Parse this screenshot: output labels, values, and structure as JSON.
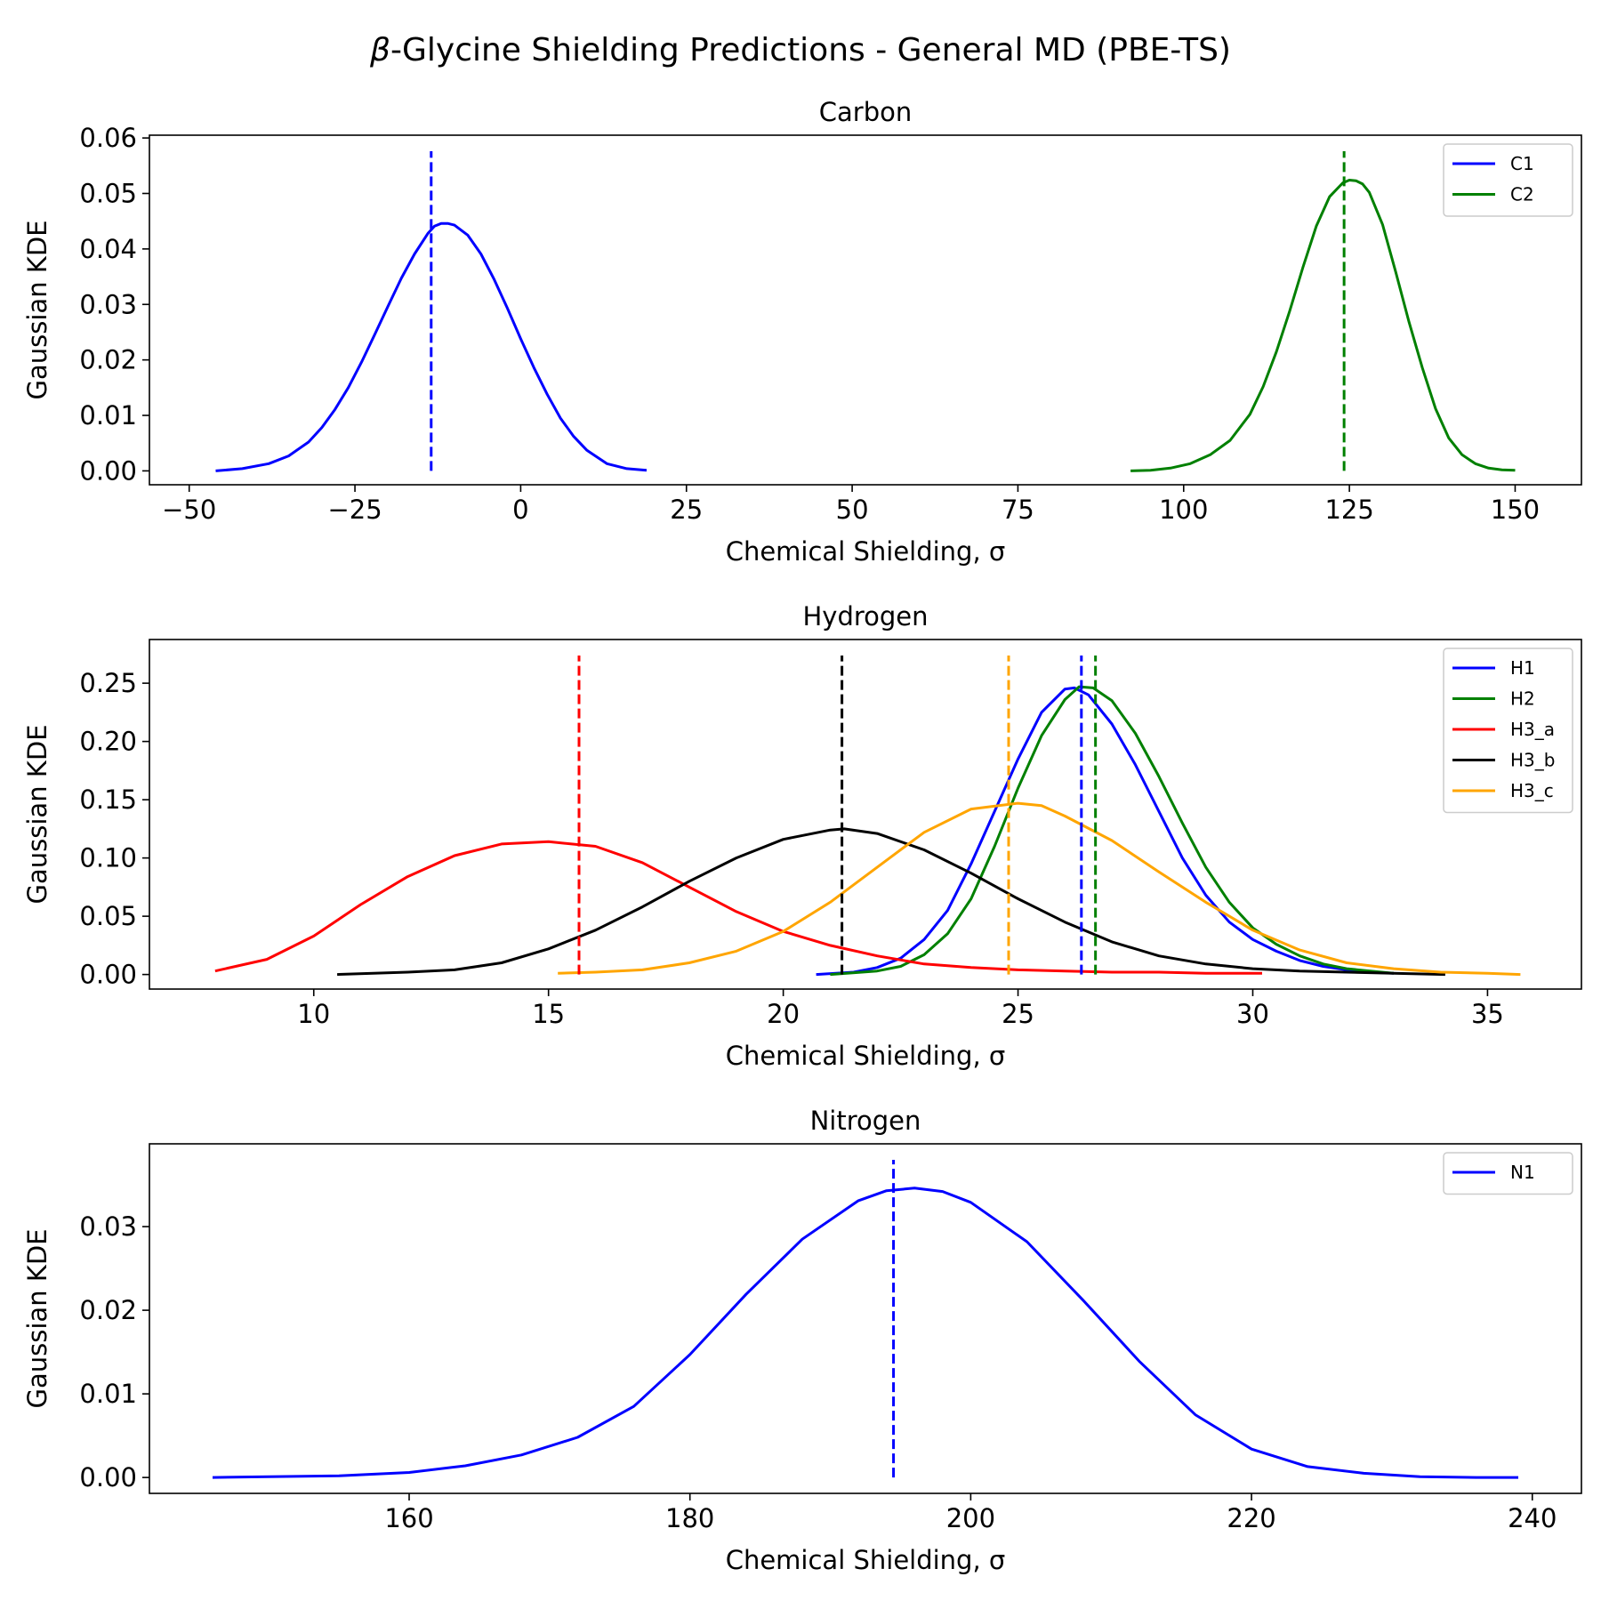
{
  "figure": {
    "title_prefix": "β",
    "title_rest": "-Glycine Shielding Predictions - General MD (PBE-TS)"
  },
  "chart_data": [
    {
      "type": "line",
      "title": "Carbon",
      "xlabel": "Chemical Shielding, σ",
      "ylabel": "Gaussian KDE",
      "xlim": [
        -56,
        160
      ],
      "ylim": [
        -0.0025,
        0.0605
      ],
      "xticks": [
        -50,
        -25,
        0,
        25,
        50,
        75,
        100,
        125,
        150
      ],
      "xtick_labels": [
        "−50",
        "−25",
        "0",
        "25",
        "50",
        "75",
        "100",
        "125",
        "150"
      ],
      "yticks": [
        0,
        0.01,
        0.02,
        0.03,
        0.04,
        0.05,
        0.06
      ],
      "ytick_labels": [
        "0.00",
        "0.01",
        "0.02",
        "0.03",
        "0.04",
        "0.05",
        "0.06"
      ],
      "legend": "top-right",
      "series": [
        {
          "name": "C1",
          "color": "#0000ff",
          "x": [
            -46,
            -42,
            -38,
            -35,
            -32,
            -30,
            -28,
            -26,
            -24,
            -22,
            -20,
            -18,
            -16,
            -14,
            -13,
            -12,
            -11,
            -10,
            -8,
            -6,
            -4,
            -2,
            0,
            2,
            4,
            6,
            8,
            10,
            13,
            16,
            19
          ],
          "y": [
            0.0,
            0.0004,
            0.0013,
            0.0027,
            0.0052,
            0.0078,
            0.0111,
            0.015,
            0.0196,
            0.0246,
            0.0297,
            0.0347,
            0.0391,
            0.0428,
            0.0441,
            0.0446,
            0.0446,
            0.0443,
            0.0425,
            0.0391,
            0.0345,
            0.0293,
            0.0238,
            0.0186,
            0.0138,
            0.0095,
            0.0062,
            0.0037,
            0.0013,
            0.0004,
            0.0001
          ],
          "mean": -13.5
        },
        {
          "name": "C2",
          "color": "#008000",
          "x": [
            92,
            95,
            98,
            101,
            104,
            107,
            110,
            112,
            114,
            116,
            118,
            120,
            122,
            124,
            125,
            126,
            127,
            128,
            130,
            132,
            134,
            136,
            138,
            140,
            142,
            144,
            146,
            148,
            150
          ],
          "y": [
            0.0,
            0.0001,
            0.0005,
            0.0013,
            0.0029,
            0.0055,
            0.0102,
            0.0152,
            0.0215,
            0.0288,
            0.0367,
            0.0441,
            0.0494,
            0.0519,
            0.0524,
            0.0523,
            0.0517,
            0.0502,
            0.0444,
            0.0358,
            0.0268,
            0.0186,
            0.0112,
            0.0059,
            0.0029,
            0.0013,
            0.0005,
            0.0002,
            0.0001
          ],
          "mean": 124.2
        }
      ]
    },
    {
      "type": "line",
      "title": "Hydrogen",
      "xlabel": "Chemical Shielding, σ",
      "ylabel": "Gaussian KDE",
      "xlim": [
        6.5,
        37
      ],
      "ylim": [
        -0.0125,
        0.2875
      ],
      "xticks": [
        10,
        15,
        20,
        25,
        30,
        35
      ],
      "xtick_labels": [
        "10",
        "15",
        "20",
        "25",
        "30",
        "35"
      ],
      "yticks": [
        0,
        0.05,
        0.1,
        0.15,
        0.2,
        0.25
      ],
      "ytick_labels": [
        "0.00",
        "0.05",
        "0.10",
        "0.15",
        "0.20",
        "0.25"
      ],
      "legend": "top-right",
      "series": [
        {
          "name": "H1",
          "color": "#0000ff",
          "x": [
            20.7,
            21.5,
            22.0,
            22.5,
            23.0,
            23.5,
            24.0,
            24.5,
            25.0,
            25.5,
            26.0,
            26.2,
            26.5,
            27.0,
            27.5,
            28.0,
            28.5,
            29.0,
            29.5,
            30.0,
            30.5,
            31.0,
            31.5,
            32.0,
            32.5,
            33.0
          ],
          "y": [
            0.0,
            0.002,
            0.006,
            0.014,
            0.03,
            0.055,
            0.095,
            0.14,
            0.185,
            0.225,
            0.245,
            0.246,
            0.24,
            0.215,
            0.18,
            0.14,
            0.1,
            0.068,
            0.045,
            0.03,
            0.02,
            0.012,
            0.007,
            0.004,
            0.002,
            0.001
          ],
          "mean": 26.35
        },
        {
          "name": "H2",
          "color": "#008000",
          "x": [
            21.0,
            22.0,
            22.5,
            23.0,
            23.5,
            24.0,
            24.5,
            25.0,
            25.5,
            26.0,
            26.3,
            26.6,
            27.0,
            27.5,
            28.0,
            28.5,
            29.0,
            29.5,
            30.0,
            30.5,
            31.0,
            31.5,
            32.0,
            32.5,
            33.0
          ],
          "y": [
            0.0,
            0.003,
            0.007,
            0.017,
            0.035,
            0.065,
            0.11,
            0.16,
            0.205,
            0.236,
            0.247,
            0.246,
            0.235,
            0.207,
            0.17,
            0.13,
            0.092,
            0.062,
            0.04,
            0.026,
            0.016,
            0.009,
            0.005,
            0.003,
            0.001
          ],
          "mean": 26.65
        },
        {
          "name": "H3_a",
          "color": "#ff0000",
          "x": [
            7.9,
            9.0,
            10.0,
            11.0,
            12.0,
            13.0,
            14.0,
            15.0,
            16.0,
            17.0,
            18.0,
            19.0,
            20.0,
            21.0,
            22.0,
            23.0,
            24.0,
            25.0,
            26.0,
            27.0,
            28.0,
            29.0,
            30.2
          ],
          "y": [
            0.003,
            0.013,
            0.033,
            0.06,
            0.084,
            0.102,
            0.112,
            0.114,
            0.11,
            0.096,
            0.075,
            0.054,
            0.037,
            0.025,
            0.016,
            0.009,
            0.006,
            0.004,
            0.003,
            0.002,
            0.002,
            0.001,
            0.001
          ],
          "mean": 15.65
        },
        {
          "name": "H3_b",
          "color": "#000000",
          "x": [
            10.5,
            12.0,
            13.0,
            14.0,
            15.0,
            16.0,
            17.0,
            18.0,
            19.0,
            20.0,
            21.0,
            21.3,
            22.0,
            23.0,
            24.0,
            25.0,
            26.0,
            27.0,
            28.0,
            29.0,
            30.0,
            31.0,
            32.0,
            34.1
          ],
          "y": [
            0.0,
            0.002,
            0.004,
            0.01,
            0.022,
            0.038,
            0.058,
            0.08,
            0.1,
            0.116,
            0.124,
            0.125,
            0.121,
            0.107,
            0.087,
            0.065,
            0.045,
            0.028,
            0.016,
            0.009,
            0.005,
            0.003,
            0.002,
            0.0
          ],
          "mean": 21.25
        },
        {
          "name": "H3_c",
          "color": "#ffa500",
          "x": [
            15.2,
            16.0,
            17.0,
            18.0,
            19.0,
            20.0,
            21.0,
            22.0,
            23.0,
            24.0,
            25.0,
            25.5,
            26.0,
            27.0,
            28.0,
            29.0,
            30.0,
            31.0,
            32.0,
            33.0,
            34.0,
            35.0,
            35.7
          ],
          "y": [
            0.001,
            0.002,
            0.004,
            0.01,
            0.02,
            0.037,
            0.062,
            0.092,
            0.122,
            0.142,
            0.147,
            0.145,
            0.136,
            0.115,
            0.088,
            0.062,
            0.038,
            0.021,
            0.01,
            0.005,
            0.002,
            0.001,
            0.0
          ],
          "mean": 24.8
        }
      ]
    },
    {
      "type": "line",
      "title": "Nitrogen",
      "xlabel": "Chemical Shielding, σ",
      "ylabel": "Gaussian KDE",
      "xlim": [
        141.5,
        243.5
      ],
      "ylim": [
        -0.0019,
        0.0399
      ],
      "xticks": [
        160,
        180,
        200,
        220,
        240
      ],
      "xtick_labels": [
        "160",
        "180",
        "200",
        "220",
        "240"
      ],
      "yticks": [
        0,
        0.01,
        0.02,
        0.03
      ],
      "ytick_labels": [
        "0.00",
        "0.01",
        "0.02",
        "0.03"
      ],
      "legend": "top-right",
      "series": [
        {
          "name": "N1",
          "color": "#0000ff",
          "x": [
            146,
            150,
            155,
            160,
            164,
            168,
            172,
            176,
            180,
            184,
            188,
            192,
            194,
            196,
            198,
            200,
            204,
            208,
            212,
            216,
            220,
            224,
            228,
            232,
            236,
            239
          ],
          "y": [
            0.0,
            0.0001,
            0.0002,
            0.0006,
            0.0014,
            0.0027,
            0.0048,
            0.0085,
            0.0147,
            0.0219,
            0.0285,
            0.0331,
            0.0343,
            0.0346,
            0.0342,
            0.0329,
            0.0282,
            0.0212,
            0.0139,
            0.0075,
            0.0034,
            0.0013,
            0.0005,
            0.0001,
            0.0,
            0.0
          ],
          "mean": 194.5
        }
      ]
    }
  ]
}
